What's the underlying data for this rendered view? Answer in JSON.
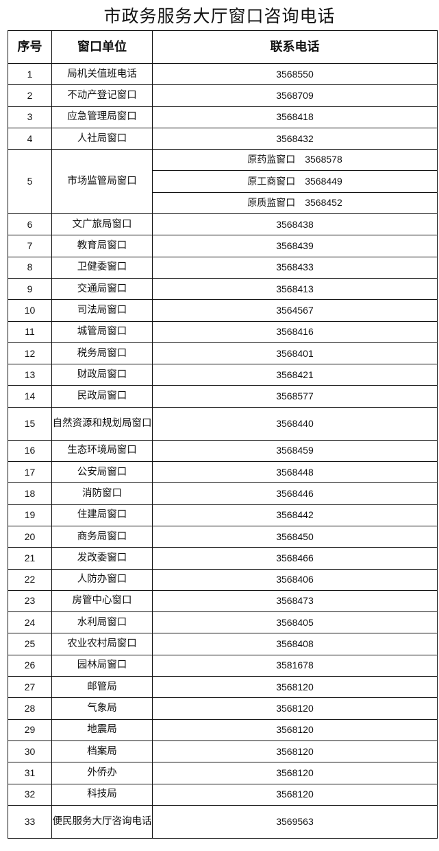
{
  "title": "市政务服务大厅窗口咨询电话",
  "headers": [
    "序号",
    "窗口单位",
    "联系电话"
  ],
  "rows": [
    {
      "no": "1",
      "unit": "局机关值班电话",
      "phone": "3568550"
    },
    {
      "no": "2",
      "unit": "不动产登记窗口",
      "phone": "3568709"
    },
    {
      "no": "3",
      "unit": "应急管理局窗口",
      "phone": "3568418"
    },
    {
      "no": "4",
      "unit": "人社局窗口",
      "phone": "3568432"
    },
    {
      "no": "5",
      "unit": "市场监管局窗口",
      "subs": [
        {
          "name": "原药监窗口",
          "phone": "3568578"
        },
        {
          "name": "原工商窗口",
          "phone": "3568449"
        },
        {
          "name": "原质监窗口",
          "phone": "3568452"
        }
      ]
    },
    {
      "no": "6",
      "unit": "文广旅局窗口",
      "phone": "3568438"
    },
    {
      "no": "7",
      "unit": "教育局窗口",
      "phone": "3568439"
    },
    {
      "no": "8",
      "unit": "卫健委窗口",
      "phone": "3568433"
    },
    {
      "no": "9",
      "unit": "交通局窗口",
      "phone": "3568413"
    },
    {
      "no": "10",
      "unit": "司法局窗口",
      "phone": "3564567"
    },
    {
      "no": "11",
      "unit": "城管局窗口",
      "phone": "3568416"
    },
    {
      "no": "12",
      "unit": "税务局窗口",
      "phone": "3568401"
    },
    {
      "no": "13",
      "unit": "财政局窗口",
      "phone": "3568421"
    },
    {
      "no": "14",
      "unit": "民政局窗口",
      "phone": "3568577"
    },
    {
      "no": "15",
      "unit": "自然资源和规划局窗口",
      "phone": "3568440",
      "tall": true
    },
    {
      "no": "16",
      "unit": "生态环境局窗口",
      "phone": "3568459"
    },
    {
      "no": "17",
      "unit": "公安局窗口",
      "phone": "3568448"
    },
    {
      "no": "18",
      "unit": "消防窗口",
      "phone": "3568446"
    },
    {
      "no": "19",
      "unit": "住建局窗口",
      "phone": "3568442"
    },
    {
      "no": "20",
      "unit": "商务局窗口",
      "phone": "3568450"
    },
    {
      "no": "21",
      "unit": "发改委窗口",
      "phone": "3568466"
    },
    {
      "no": "22",
      "unit": "人防办窗口",
      "phone": "3568406"
    },
    {
      "no": "23",
      "unit": "房管中心窗口",
      "phone": "3568473"
    },
    {
      "no": "24",
      "unit": "水利局窗口",
      "phone": "3568405"
    },
    {
      "no": "25",
      "unit": "农业农村局窗口",
      "phone": "3568408"
    },
    {
      "no": "26",
      "unit": "园林局窗口",
      "phone": "3581678"
    },
    {
      "no": "27",
      "unit": "邮管局",
      "phone": "3568120"
    },
    {
      "no": "28",
      "unit": "气象局",
      "phone": "3568120"
    },
    {
      "no": "29",
      "unit": "地震局",
      "phone": "3568120"
    },
    {
      "no": "30",
      "unit": "档案局",
      "phone": "3568120"
    },
    {
      "no": "31",
      "unit": "外侨办",
      "phone": "3568120"
    },
    {
      "no": "32",
      "unit": "科技局",
      "phone": "3568120"
    },
    {
      "no": "33",
      "unit": "便民服务大厅咨询电话",
      "phone": "3569563",
      "tall": true
    }
  ]
}
